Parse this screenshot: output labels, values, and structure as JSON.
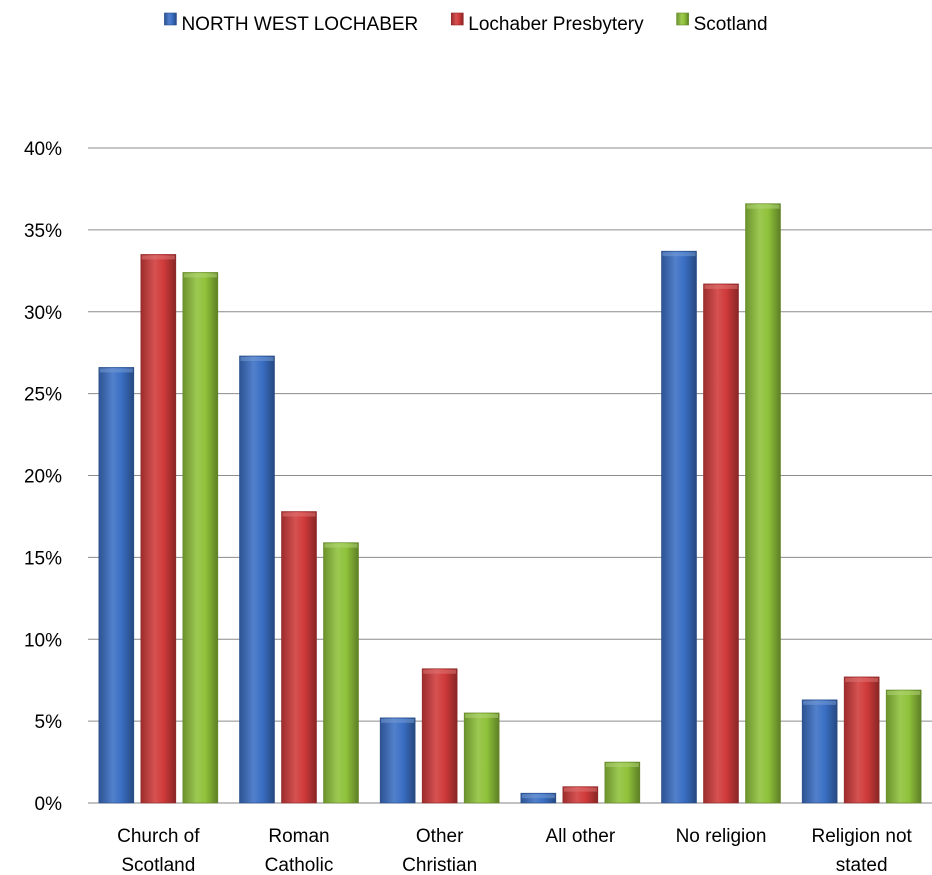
{
  "chart_data": {
    "type": "bar",
    "categories": [
      [
        "Church of",
        "Scotland"
      ],
      [
        "Roman",
        "Catholic"
      ],
      [
        "Other",
        "Christian"
      ],
      [
        "All other"
      ],
      [
        "No religion"
      ],
      [
        "Religion not",
        "stated"
      ]
    ],
    "series": [
      {
        "name": "NORTH WEST LOCHABER",
        "color": "#3a6fc4",
        "values": [
          26.6,
          27.3,
          5.2,
          0.6,
          33.7,
          6.3
        ]
      },
      {
        "name": "Lochaber Presbytery",
        "color": "#d03a3a",
        "values": [
          33.5,
          17.8,
          8.2,
          1.0,
          31.7,
          7.7
        ]
      },
      {
        "name": "Scotland",
        "color": "#8fc23a",
        "values": [
          32.4,
          15.9,
          5.5,
          2.5,
          36.6,
          6.9
        ]
      }
    ],
    "ylim": [
      0,
      40
    ],
    "yticks": [
      0,
      5,
      10,
      15,
      20,
      25,
      30,
      35,
      40
    ],
    "ytick_suffix": "%",
    "title": "",
    "xlabel": "",
    "ylabel": "",
    "grid": true,
    "legend_position": "top"
  }
}
